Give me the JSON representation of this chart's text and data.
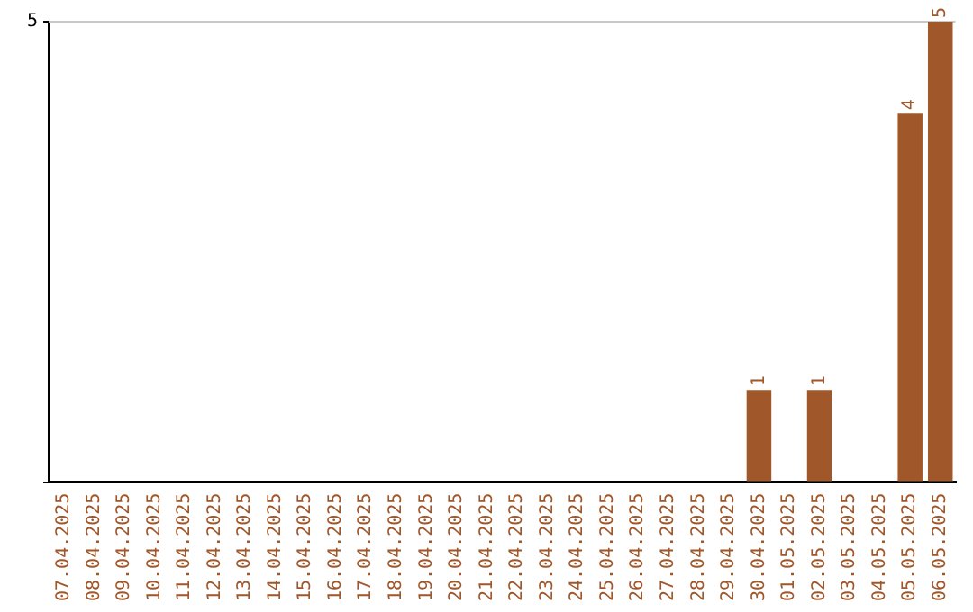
{
  "chart_data": {
    "type": "bar",
    "categories": [
      "07.04.2025",
      "08.04.2025",
      "09.04.2025",
      "10.04.2025",
      "11.04.2025",
      "12.04.2025",
      "13.04.2025",
      "14.04.2025",
      "15.04.2025",
      "16.04.2025",
      "17.04.2025",
      "18.04.2025",
      "19.04.2025",
      "20.04.2025",
      "21.04.2025",
      "22.04.2025",
      "23.04.2025",
      "24.04.2025",
      "25.04.2025",
      "26.04.2025",
      "27.04.2025",
      "28.04.2025",
      "29.04.2025",
      "30.04.2025",
      "01.05.2025",
      "02.05.2025",
      "03.05.2025",
      "04.05.2025",
      "05.05.2025",
      "06.05.2025"
    ],
    "values": [
      null,
      null,
      null,
      null,
      null,
      null,
      null,
      null,
      null,
      null,
      null,
      null,
      null,
      null,
      null,
      null,
      null,
      null,
      null,
      null,
      null,
      null,
      null,
      1,
      null,
      1,
      null,
      null,
      4,
      5
    ],
    "ylim": [
      0,
      5
    ],
    "yticks": [
      {
        "value": 0,
        "label": null
      },
      5
    ],
    "ref_lines": [
      {
        "axis": "y",
        "value": 5,
        "color": "#c8c8c8"
      }
    ],
    "value_labels": [
      null,
      null,
      null,
      null,
      null,
      null,
      null,
      null,
      null,
      null,
      null,
      null,
      null,
      null,
      null,
      null,
      null,
      null,
      null,
      null,
      null,
      null,
      null,
      "1",
      null,
      "1",
      null,
      null,
      "4",
      "5"
    ],
    "color": "#a0572a",
    "legend": false
  }
}
